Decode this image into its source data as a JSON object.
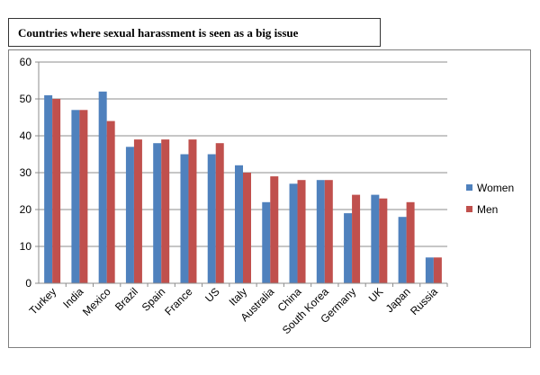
{
  "chart_data": {
    "type": "bar",
    "title": "Countries where sexual harassment is seen as a big issue",
    "xlabel": "",
    "ylabel": "",
    "ylim": [
      0,
      60
    ],
    "yticks": [
      "0",
      "10",
      "20",
      "30",
      "40",
      "50",
      "60"
    ],
    "categories": [
      "Turkey",
      "India",
      "Mexico",
      "Brazil",
      "Spain",
      "France",
      "US",
      "Italy",
      "Australia",
      "China",
      "South Korea",
      "Germany",
      "UK",
      "Japan",
      "Russia"
    ],
    "series": [
      {
        "name": "Women",
        "color": "#4f81bd",
        "values": [
          51,
          47,
          52,
          37,
          38,
          35,
          35,
          32,
          22,
          27,
          28,
          19,
          24,
          18,
          7
        ]
      },
      {
        "name": "Men",
        "color": "#c0504d",
        "values": [
          50,
          47,
          44,
          39,
          39,
          39,
          38,
          30,
          29,
          28,
          28,
          24,
          23,
          22,
          7
        ]
      }
    ],
    "grid": true,
    "legend_position": "right"
  }
}
